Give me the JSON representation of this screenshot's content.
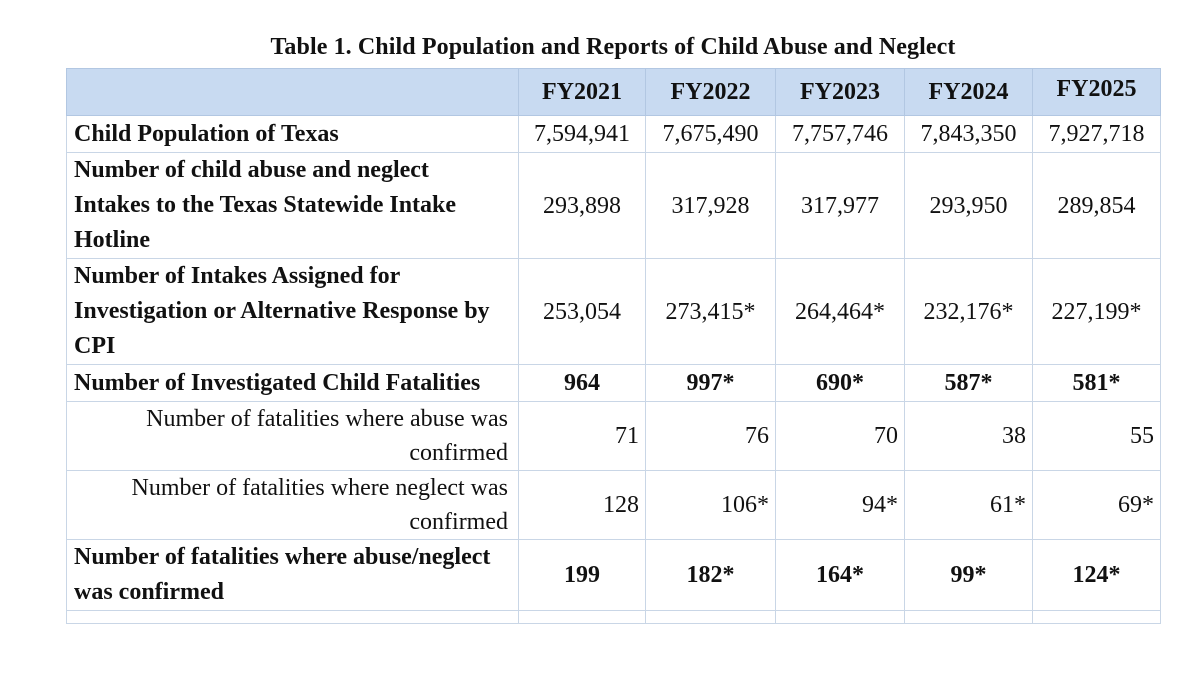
{
  "title": "Table 1. Child Population and Reports of Child Abuse and Neglect",
  "columns": [
    "FY2021",
    "FY2022",
    "FY2023",
    "FY2024",
    "FY2025"
  ],
  "rows": [
    {
      "label": "Child Population of Texas",
      "values": [
        "7,594,941",
        "7,675,490",
        "7,757,746",
        "7,843,350",
        "7,927,718"
      ]
    },
    {
      "label": "Number of child abuse and neglect Intakes to the Texas Statewide Intake Hotline",
      "values": [
        "293,898",
        "317,928",
        "317,977",
        "293,950",
        "289,854"
      ]
    },
    {
      "label": "Number of Intakes Assigned for Investigation or Alternative Response by CPI",
      "values": [
        "253,054",
        "273,415*",
        "264,464*",
        "232,176*",
        "227,199*"
      ]
    },
    {
      "label": "Number of Investigated Child Fatalities",
      "values": [
        "964",
        "997*",
        "690*",
        "587*",
        "581*"
      ]
    },
    {
      "label": "Number of fatalities where abuse was confirmed",
      "values": [
        "71",
        "76",
        "70",
        "38",
        "55"
      ]
    },
    {
      "label": "Number of fatalities where neglect was confirmed",
      "values": [
        "128",
        "106*",
        "94*",
        "61*",
        "69*"
      ]
    },
    {
      "label": "Number of fatalities where abuse/neglect was confirmed",
      "values": [
        "199",
        "182*",
        "164*",
        "99*",
        "124*"
      ]
    }
  ]
}
